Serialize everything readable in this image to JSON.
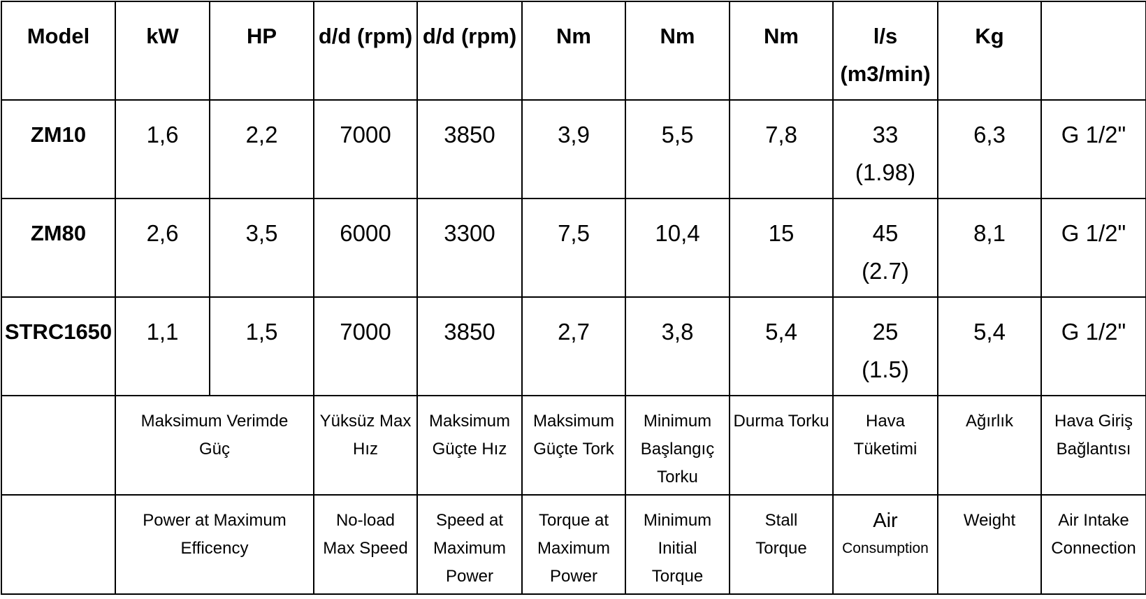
{
  "header": [
    "Model",
    "kW",
    "HP",
    "d/d (rpm)",
    "d/d (rpm)",
    "Nm",
    "Nm",
    "Nm",
    [
      "l/s",
      "(m3/min)"
    ],
    "Kg"
  ],
  "rows": [
    {
      "model": "ZM10",
      "cells": [
        "1,6",
        "2,2",
        "7000",
        "3850",
        "3,9",
        "5,5",
        "7,8",
        [
          "33",
          "(1.98)"
        ],
        "6,3",
        "G 1/2\""
      ]
    },
    {
      "model": "ZM80",
      "cells": [
        "2,6",
        "3,5",
        "6000",
        "3300",
        "7,5",
        "10,4",
        "15",
        [
          "45",
          "(2.7)"
        ],
        "8,1",
        "G 1/2\""
      ]
    },
    {
      "model": "STRC1650",
      "cells": [
        "1,1",
        "1,5",
        "7000",
        "3850",
        "2,7",
        "3,8",
        "5,4",
        [
          "25",
          "(1.5)"
        ],
        "5,4",
        "G 1/2\""
      ]
    }
  ],
  "descriptions_tr": [
    [
      "Maksimum Verimde",
      "Güç"
    ],
    [
      "Yüksüz Max",
      "Hız"
    ],
    [
      "Maksimum",
      "Güçte Hız"
    ],
    [
      "Maksimum",
      "Güçte Tork"
    ],
    [
      "Minimum",
      "Başlangıç",
      "Torku"
    ],
    [
      "Durma Torku"
    ],
    [
      "Hava",
      "Tüketimi"
    ],
    [
      "Ağırlık"
    ],
    [
      "Hava Giriş",
      "Bağlantısı"
    ]
  ],
  "descriptions_en": [
    [
      "Power at Maximum",
      "Efficency"
    ],
    [
      "No-load",
      "Max Speed"
    ],
    [
      "Speed at",
      "Maximum",
      "Power"
    ],
    [
      "Torque at",
      "Maximum",
      "Power"
    ],
    [
      "Minimum",
      "Initial",
      "Torque"
    ],
    [
      "Stall",
      "Torque"
    ],
    [
      "Air",
      "Consumption"
    ],
    [
      "Weight"
    ],
    [
      "Air Intake",
      "Connection"
    ]
  ]
}
